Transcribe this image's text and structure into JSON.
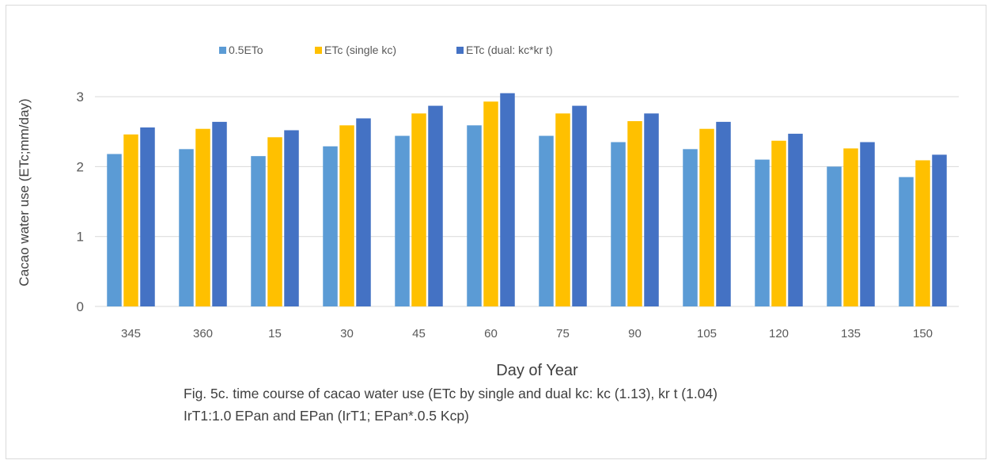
{
  "chart_data": {
    "type": "bar",
    "categories": [
      "345",
      "360",
      "15",
      "30",
      "45",
      "60",
      "75",
      "90",
      "105",
      "120",
      "135",
      "150"
    ],
    "series": [
      {
        "name": "0.5ETo",
        "color": "#5b9bd5",
        "values": [
          2.18,
          2.25,
          2.15,
          2.29,
          2.44,
          2.59,
          2.44,
          2.35,
          2.25,
          2.1,
          2.0,
          1.85
        ]
      },
      {
        "name": "ETc (single kc)",
        "color": "#ffc000",
        "values": [
          2.46,
          2.54,
          2.42,
          2.59,
          2.76,
          2.93,
          2.76,
          2.65,
          2.54,
          2.37,
          2.26,
          2.09
        ]
      },
      {
        "name": "ETc (dual: kc*kr t)",
        "color": "#4472c4",
        "values": [
          2.56,
          2.64,
          2.52,
          2.69,
          2.87,
          3.05,
          2.87,
          2.76,
          2.64,
          2.47,
          2.35,
          2.17
        ]
      }
    ],
    "yticks": [
      "0",
      "1",
      "2",
      "3"
    ],
    "ylim": [
      0,
      3.3
    ],
    "xlabel": "Day of Year",
    "ylabel": "Cacao water use (ETc;mm/day)",
    "grid": true,
    "legend": "top-left"
  },
  "caption": {
    "line1": "Fig. 5c. time course of cacao water use (ETc by single and dual kc: kc (1.13), kr t (1.04)",
    "line2": "IrT1:1.0 EPan and EPan (IrT1; EPan*.0.5 Kcp)"
  }
}
